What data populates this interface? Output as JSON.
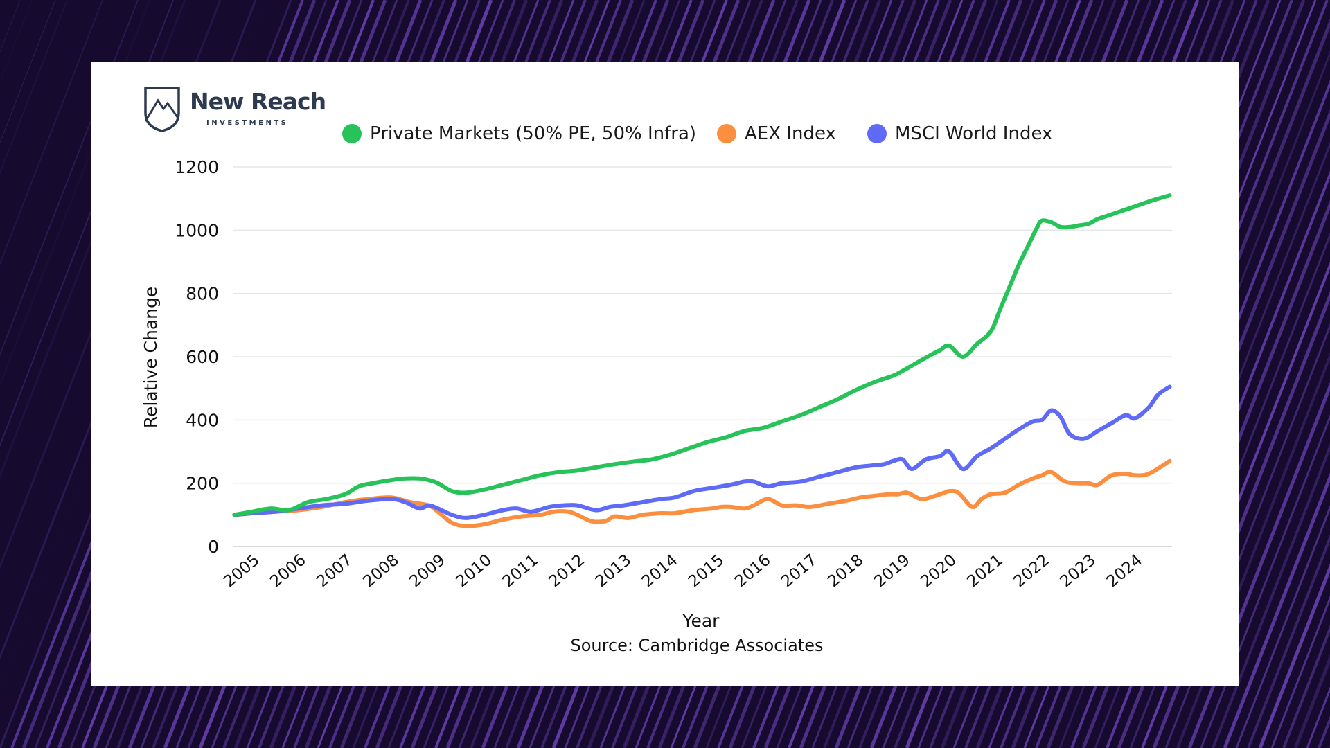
{
  "brand": {
    "name": "New Reach",
    "subtitle": "INVESTMENTS"
  },
  "source": "Source: Cambridge Associates",
  "colors": {
    "card": "#ffffff",
    "grid": "#e6e6e6",
    "private_markets": "#27c35a",
    "aex": "#fb8f3f",
    "msci": "#5f6bf7",
    "background": "#160a2e",
    "stripe": "#7d4fd3"
  },
  "chart_data": {
    "type": "line",
    "title": "",
    "xlabel": "Year",
    "ylabel": "Relative Change",
    "ylim": [
      0,
      1200
    ],
    "yticks": [
      0,
      200,
      400,
      600,
      800,
      1000,
      1200
    ],
    "xlim": [
      2004.6,
      2024.8
    ],
    "xticks": [
      2005,
      2006,
      2007,
      2008,
      2009,
      2010,
      2011,
      2012,
      2013,
      2014,
      2015,
      2016,
      2017,
      2018,
      2019,
      2020,
      2021,
      2022,
      2023,
      2024
    ],
    "xtick_labels": [
      "2005",
      "2006",
      "2007",
      "2008",
      "2009",
      "2010",
      "2011",
      "2012",
      "2013",
      "2014",
      "2015",
      "2016",
      "2017",
      "2018",
      "2019",
      "2020",
      "2021",
      "2022",
      "2023",
      "2024"
    ],
    "grid": true,
    "legend": "top",
    "series": [
      {
        "name": "Private Markets (50% PE, 50% Infra)",
        "color": "#27c35a",
        "x": [
          2004.62,
          2005.0,
          2005.4,
          2005.8,
          2006.2,
          2006.6,
          2007.0,
          2007.3,
          2007.6,
          2008.0,
          2008.3,
          2008.6,
          2008.8,
          2009.0,
          2009.3,
          2009.6,
          2010.0,
          2010.4,
          2010.8,
          2011.2,
          2011.6,
          2012.0,
          2012.4,
          2012.8,
          2013.2,
          2013.6,
          2014.0,
          2014.4,
          2014.8,
          2015.2,
          2015.6,
          2016.0,
          2016.4,
          2016.8,
          2017.2,
          2017.6,
          2018.0,
          2018.4,
          2018.8,
          2019.0,
          2019.3,
          2019.6,
          2019.8,
          2020.0,
          2020.3,
          2020.6,
          2020.9,
          2021.1,
          2021.3,
          2021.5,
          2021.7,
          2021.9,
          2022.0,
          2022.2,
          2022.4,
          2022.6,
          2022.8,
          2023.0,
          2023.2,
          2023.4,
          2023.7,
          2024.0,
          2024.4,
          2024.75
        ],
        "y": [
          100,
          110,
          120,
          115,
          140,
          150,
          165,
          190,
          200,
          210,
          215,
          215,
          210,
          200,
          175,
          170,
          180,
          195,
          210,
          225,
          235,
          240,
          250,
          260,
          268,
          275,
          290,
          310,
          330,
          345,
          365,
          375,
          395,
          415,
          440,
          465,
          495,
          520,
          540,
          555,
          580,
          605,
          620,
          635,
          600,
          640,
          680,
          750,
          820,
          890,
          950,
          1010,
          1030,
          1025,
          1010,
          1010,
          1015,
          1020,
          1035,
          1045,
          1060,
          1075,
          1095,
          1110
        ]
      },
      {
        "name": "AEX Index",
        "color": "#fb8f3f",
        "x": [
          2004.62,
          2005.0,
          2005.5,
          2006.0,
          2006.5,
          2007.0,
          2007.5,
          2008.0,
          2008.4,
          2008.8,
          2009.0,
          2009.3,
          2009.6,
          2010.0,
          2010.4,
          2010.8,
          2011.2,
          2011.5,
          2011.8,
          2012.0,
          2012.3,
          2012.6,
          2012.8,
          2013.1,
          2013.4,
          2013.8,
          2014.1,
          2014.5,
          2014.9,
          2015.1,
          2015.3,
          2015.6,
          2015.8,
          2016.1,
          2016.4,
          2016.7,
          2017.0,
          2017.4,
          2017.8,
          2018.1,
          2018.4,
          2018.7,
          2018.9,
          2019.1,
          2019.4,
          2019.7,
          2019.9,
          2020.0,
          2020.2,
          2020.5,
          2020.7,
          2020.9,
          2021.2,
          2021.5,
          2021.8,
          2022.0,
          2022.2,
          2022.5,
          2022.8,
          2023.0,
          2023.2,
          2023.5,
          2023.8,
          2024.0,
          2024.3,
          2024.75
        ],
        "y": [
          100,
          105,
          110,
          115,
          125,
          140,
          150,
          155,
          140,
          130,
          110,
          75,
          65,
          70,
          85,
          95,
          100,
          110,
          110,
          100,
          80,
          80,
          95,
          90,
          100,
          105,
          105,
          115,
          120,
          125,
          125,
          120,
          130,
          150,
          130,
          130,
          125,
          135,
          145,
          155,
          160,
          165,
          165,
          170,
          150,
          160,
          170,
          175,
          170,
          125,
          150,
          165,
          170,
          195,
          215,
          225,
          235,
          205,
          200,
          200,
          195,
          225,
          230,
          225,
          230,
          270
        ]
      },
      {
        "name": "MSCI World Index",
        "color": "#5f6bf7",
        "x": [
          2004.62,
          2005.0,
          2005.5,
          2006.0,
          2006.5,
          2007.0,
          2007.5,
          2008.0,
          2008.3,
          2008.6,
          2008.8,
          2009.0,
          2009.3,
          2009.6,
          2010.0,
          2010.4,
          2010.7,
          2011.0,
          2011.4,
          2011.7,
          2012.0,
          2012.4,
          2012.7,
          2013.0,
          2013.4,
          2013.8,
          2014.1,
          2014.5,
          2014.9,
          2015.3,
          2015.6,
          2015.8,
          2016.1,
          2016.4,
          2016.8,
          2017.2,
          2017.6,
          2018.0,
          2018.3,
          2018.6,
          2018.8,
          2019.0,
          2019.2,
          2019.5,
          2019.8,
          2020.0,
          2020.3,
          2020.6,
          2020.9,
          2021.2,
          2021.5,
          2021.8,
          2022.0,
          2022.2,
          2022.4,
          2022.6,
          2022.9,
          2023.2,
          2023.5,
          2023.8,
          2024.0,
          2024.3,
          2024.5,
          2024.75
        ],
        "y": [
          100,
          105,
          110,
          120,
          130,
          135,
          145,
          150,
          140,
          120,
          130,
          120,
          100,
          90,
          100,
          115,
          120,
          110,
          125,
          130,
          130,
          115,
          125,
          130,
          140,
          150,
          155,
          175,
          185,
          195,
          205,
          205,
          190,
          200,
          205,
          220,
          235,
          250,
          255,
          260,
          270,
          275,
          245,
          275,
          285,
          300,
          245,
          285,
          310,
          340,
          370,
          395,
          400,
          430,
          410,
          355,
          340,
          365,
          390,
          415,
          405,
          440,
          480,
          505
        ]
      }
    ]
  }
}
